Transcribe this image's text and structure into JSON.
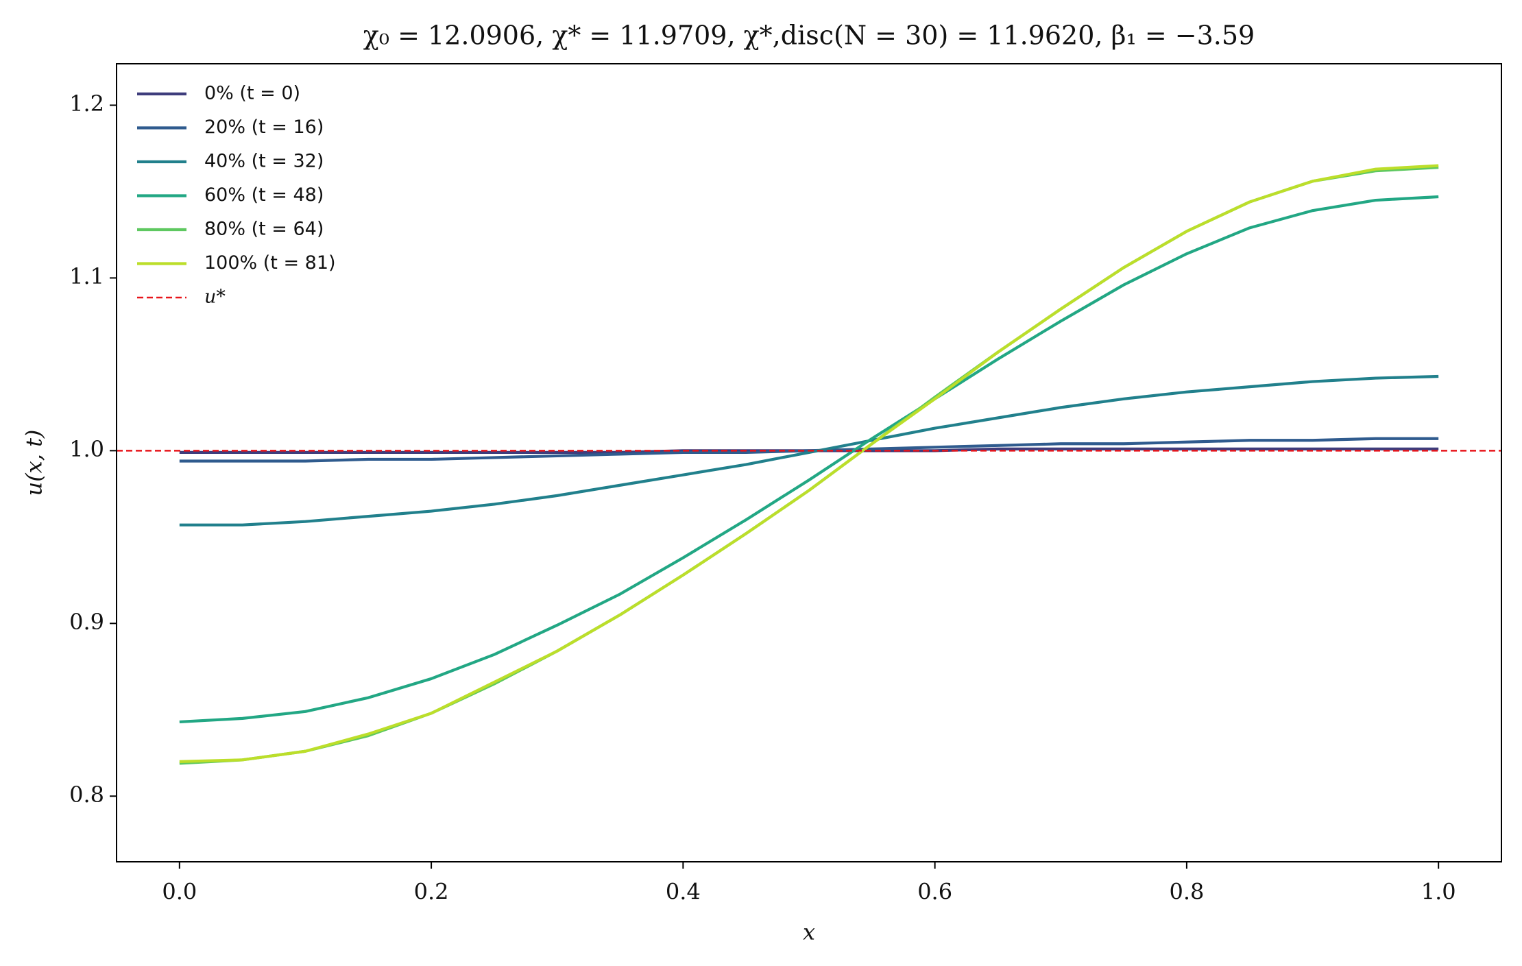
{
  "chart_data": {
    "type": "line",
    "title": "χ₀ = 12.0906,  χ* = 11.9709,  χ*,disc(N = 30) = 11.9620,  β₁ = −3.59",
    "x_label": "x",
    "y_label": "u(x, t)",
    "x": [
      0,
      0.05,
      0.1,
      0.15,
      0.2,
      0.25,
      0.3,
      0.35,
      0.4,
      0.45,
      0.5,
      0.55,
      0.6,
      0.65,
      0.7,
      0.75,
      0.8,
      0.85,
      0.9,
      0.95,
      1
    ],
    "series": [
      {
        "name": "0% (t = 0)",
        "color": "#3e3d7c",
        "values": [
          0.999,
          0.999,
          0.999,
          0.999,
          0.999,
          0.999,
          0.999,
          0.999,
          1.0,
          1.0,
          1.0,
          1.0,
          1.0,
          1.001,
          1.001,
          1.001,
          1.001,
          1.001,
          1.001,
          1.001,
          1.001
        ]
      },
      {
        "name": "20% (t = 16)",
        "color": "#2f5b8e",
        "values": [
          0.994,
          0.994,
          0.994,
          0.995,
          0.995,
          0.996,
          0.997,
          0.998,
          0.999,
          0.999,
          1.0,
          1.001,
          1.002,
          1.003,
          1.004,
          1.004,
          1.005,
          1.006,
          1.006,
          1.007,
          1.007
        ]
      },
      {
        "name": "40% (t = 32)",
        "color": "#21808c",
        "values": [
          0.957,
          0.957,
          0.959,
          0.962,
          0.965,
          0.969,
          0.974,
          0.98,
          0.986,
          0.992,
          0.999,
          1.006,
          1.013,
          1.019,
          1.025,
          1.03,
          1.034,
          1.037,
          1.04,
          1.042,
          1.043
        ]
      },
      {
        "name": "60% (t = 48)",
        "color": "#22a784",
        "values": [
          0.843,
          0.845,
          0.849,
          0.857,
          0.868,
          0.882,
          0.899,
          0.917,
          0.938,
          0.96,
          0.983,
          1.007,
          1.03,
          1.053,
          1.075,
          1.096,
          1.114,
          1.129,
          1.139,
          1.145,
          1.147
        ]
      },
      {
        "name": "80% (t = 64)",
        "color": "#5ec860",
        "values": [
          0.819,
          0.821,
          0.826,
          0.835,
          0.848,
          0.865,
          0.884,
          0.905,
          0.928,
          0.952,
          0.977,
          1.004,
          1.031,
          1.057,
          1.082,
          1.106,
          1.127,
          1.144,
          1.156,
          1.162,
          1.164
        ]
      },
      {
        "name": "100% (t = 81)",
        "color": "#bcde2a",
        "values": [
          0.82,
          0.821,
          0.826,
          0.836,
          0.848,
          0.866,
          0.884,
          0.905,
          0.928,
          0.952,
          0.977,
          1.004,
          1.03,
          1.057,
          1.082,
          1.106,
          1.127,
          1.144,
          1.156,
          1.163,
          1.165
        ]
      }
    ],
    "reference_line": {
      "name": "u*",
      "value": 1.0,
      "color": "#e8141a"
    },
    "xlim": [
      -0.05,
      1.05
    ],
    "xticks": [
      {
        "value": 0,
        "label": "0.0"
      },
      0.2,
      0.4,
      0.6,
      0.8,
      {
        "value": 1,
        "label": "1.0"
      }
    ],
    "ylim": [
      0.762,
      1.224
    ],
    "yticks": [
      0.8,
      0.9,
      {
        "value": 1,
        "label": "1.0"
      },
      1.1,
      1.2
    ],
    "legend": "upper left"
  }
}
